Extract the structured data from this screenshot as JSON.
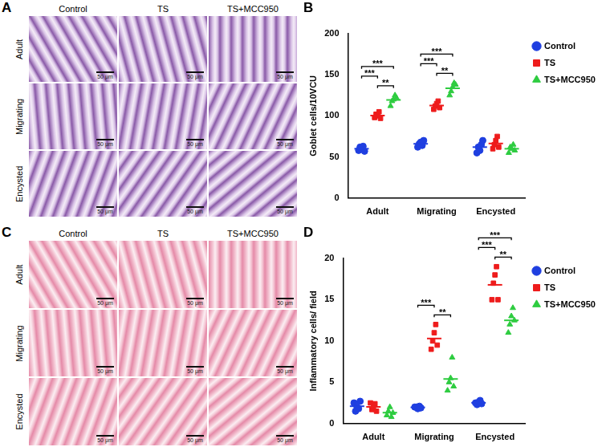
{
  "image_panels": [
    {
      "panel": "A",
      "columns": [
        "Control",
        "TS",
        "TS+MCC950"
      ],
      "rows": [
        "Adult",
        "Migrating",
        "Encysted"
      ],
      "scale_bar": "50 μm"
    },
    {
      "panel": "C",
      "columns": [
        "Control",
        "TS",
        "TS+MCC950"
      ],
      "rows": [
        "Adult",
        "Migrating",
        "Encysted"
      ],
      "scale_bar": "50 μm"
    }
  ],
  "chart_data": [
    {
      "panel": "B",
      "type": "scatter",
      "categories": [
        "Adult",
        "Migrating",
        "Encysted"
      ],
      "y_label": "Goblet cells/10VCU",
      "ylim": [
        0,
        200
      ],
      "yticks": [
        0,
        50,
        100,
        150,
        200
      ],
      "grid": false,
      "legend": "right",
      "series": [
        {
          "name": "Control",
          "color": "#1f3fe0",
          "marker": "circle",
          "values": [
            [
              58,
              62,
              60,
              63,
              57
            ],
            [
              62,
              66,
              68,
              64,
              70
            ],
            [
              55,
              62,
              58,
              65,
              70
            ]
          ]
        },
        {
          "name": "TS",
          "color": "#ee1c1c",
          "marker": "square",
          "values": [
            [
              98,
              102,
              100,
              105,
              97
            ],
            [
              108,
              112,
              115,
              118,
              110
            ],
            [
              60,
              65,
              70,
              75,
              62
            ]
          ]
        },
        {
          "name": "TS+MCC950",
          "color": "#2ecc40",
          "marker": "triangle",
          "values": [
            [
              112,
              118,
              120,
              125,
              122
            ],
            [
              125,
              130,
              135,
              140,
              138
            ],
            [
              55,
              62,
              60,
              65,
              58
            ]
          ]
        }
      ],
      "comparisons": [
        {
          "category": "Adult",
          "from": "Control",
          "to": "TS+MCC950",
          "label": "***"
        },
        {
          "category": "Adult",
          "from": "Control",
          "to": "TS",
          "label": "***"
        },
        {
          "category": "Adult",
          "from": "TS",
          "to": "TS+MCC950",
          "label": "**"
        },
        {
          "category": "Migrating",
          "from": "Control",
          "to": "TS+MCC950",
          "label": "***"
        },
        {
          "category": "Migrating",
          "from": "Control",
          "to": "TS",
          "label": "***"
        },
        {
          "category": "Migrating",
          "from": "TS",
          "to": "TS+MCC950",
          "label": "**"
        }
      ]
    },
    {
      "panel": "D",
      "type": "scatter",
      "categories": [
        "Adult",
        "Migrating",
        "Encysted"
      ],
      "y_label": "Inflammatory cells/ field",
      "ylim": [
        0,
        20
      ],
      "yticks": [
        0,
        5,
        10,
        15,
        20
      ],
      "grid": false,
      "legend": "right",
      "series": [
        {
          "name": "Control",
          "color": "#1f3fe0",
          "marker": "circle",
          "values": [
            [
              2.5,
              1.5,
              2,
              1.8,
              2.7
            ],
            [
              2,
              2,
              1.8,
              2.1,
              1.9
            ],
            [
              2.5,
              2.3,
              2.6,
              2.8,
              2.4
            ]
          ]
        },
        {
          "name": "TS",
          "color": "#ee1c1c",
          "marker": "square",
          "values": [
            [
              2.5,
              1.7,
              2,
              2.4,
              1.5
            ],
            [
              9,
              10,
              11,
              12,
              9.5
            ],
            [
              15,
              17,
              18,
              19,
              15
            ]
          ]
        },
        {
          "name": "TS+MCC950",
          "color": "#2ecc40",
          "marker": "triangle",
          "values": [
            [
              1,
              1.5,
              2,
              0.8,
              1.3
            ],
            [
              4,
              5,
              5.5,
              8,
              4.5
            ],
            [
              11,
              12,
              13,
              14,
              12.5
            ]
          ]
        }
      ],
      "comparisons": [
        {
          "category": "Migrating",
          "from": "Control",
          "to": "TS",
          "label": "***"
        },
        {
          "category": "Migrating",
          "from": "TS",
          "to": "TS+MCC950",
          "label": "**"
        },
        {
          "category": "Encysted",
          "from": "Control",
          "to": "TS+MCC950",
          "label": "***"
        },
        {
          "category": "Encysted",
          "from": "Control",
          "to": "TS",
          "label": "***"
        },
        {
          "category": "Encysted",
          "from": "TS",
          "to": "TS+MCC950",
          "label": "**"
        }
      ]
    }
  ]
}
